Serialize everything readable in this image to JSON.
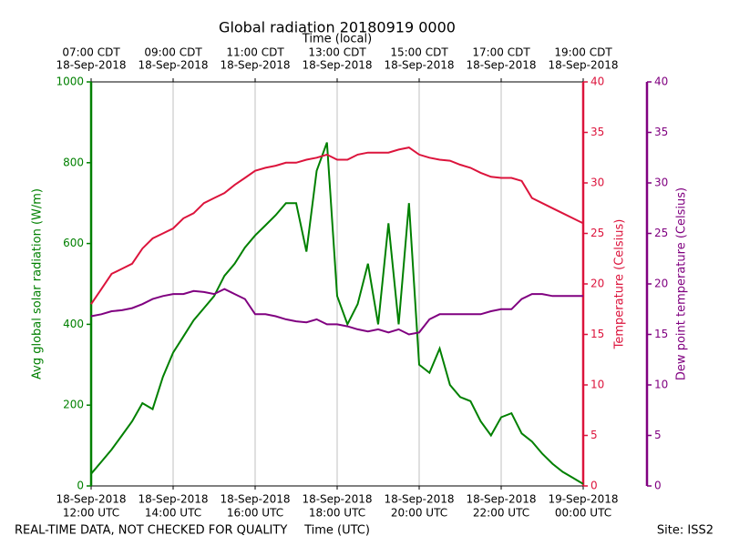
{
  "chart_data": {
    "type": "line",
    "title": "Global radiation 20180919 0000",
    "x2label": "Time (local)",
    "xlabel": "Time (UTC)",
    "footnote": "REAL-TIME DATA, NOT CHECKED FOR QUALITY",
    "site": "Site: ISS2",
    "grid": "x",
    "x": [
      "2018-09-18T12:00Z",
      "2018-09-18T12:15Z",
      "2018-09-18T12:30Z",
      "2018-09-18T12:45Z",
      "2018-09-18T13:00Z",
      "2018-09-18T13:15Z",
      "2018-09-18T13:30Z",
      "2018-09-18T13:45Z",
      "2018-09-18T14:00Z",
      "2018-09-18T14:15Z",
      "2018-09-18T14:30Z",
      "2018-09-18T14:45Z",
      "2018-09-18T15:00Z",
      "2018-09-18T15:15Z",
      "2018-09-18T15:30Z",
      "2018-09-18T15:45Z",
      "2018-09-18T16:00Z",
      "2018-09-18T16:15Z",
      "2018-09-18T16:30Z",
      "2018-09-18T16:45Z",
      "2018-09-18T17:00Z",
      "2018-09-18T17:15Z",
      "2018-09-18T17:30Z",
      "2018-09-18T17:45Z",
      "2018-09-18T18:00Z",
      "2018-09-18T18:15Z",
      "2018-09-18T18:30Z",
      "2018-09-18T18:45Z",
      "2018-09-18T19:00Z",
      "2018-09-18T19:15Z",
      "2018-09-18T19:30Z",
      "2018-09-18T19:45Z",
      "2018-09-18T20:00Z",
      "2018-09-18T20:15Z",
      "2018-09-18T20:30Z",
      "2018-09-18T20:45Z",
      "2018-09-18T21:00Z",
      "2018-09-18T21:15Z",
      "2018-09-18T21:30Z",
      "2018-09-18T21:45Z",
      "2018-09-18T22:00Z",
      "2018-09-18T22:15Z",
      "2018-09-18T22:30Z",
      "2018-09-18T22:45Z",
      "2018-09-18T23:00Z",
      "2018-09-18T23:15Z",
      "2018-09-18T23:30Z",
      "2018-09-18T23:45Z",
      "2018-09-19T00:00Z"
    ],
    "xlim": [
      "2018-09-18T12:00Z",
      "2018-09-19T00:00Z"
    ],
    "xticks": [
      {
        "value": "2018-09-18T12:00Z",
        "label": [
          "18-Sep-2018",
          "12:00 UTC"
        ]
      },
      {
        "value": "2018-09-18T14:00Z",
        "label": [
          "18-Sep-2018",
          "14:00 UTC"
        ]
      },
      {
        "value": "2018-09-18T16:00Z",
        "label": [
          "18-Sep-2018",
          "16:00 UTC"
        ]
      },
      {
        "value": "2018-09-18T18:00Z",
        "label": [
          "18-Sep-2018",
          "18:00 UTC"
        ]
      },
      {
        "value": "2018-09-18T20:00Z",
        "label": [
          "18-Sep-2018",
          "20:00 UTC"
        ]
      },
      {
        "value": "2018-09-18T22:00Z",
        "label": [
          "18-Sep-2018",
          "22:00 UTC"
        ]
      },
      {
        "value": "2018-09-19T00:00Z",
        "label": [
          "19-Sep-2018",
          "00:00 UTC"
        ]
      }
    ],
    "x2ticks": [
      {
        "value": "2018-09-18T12:00Z",
        "label": [
          "07:00 CDT",
          "18-Sep-2018"
        ]
      },
      {
        "value": "2018-09-18T14:00Z",
        "label": [
          "09:00 CDT",
          "18-Sep-2018"
        ]
      },
      {
        "value": "2018-09-18T16:00Z",
        "label": [
          "11:00 CDT",
          "18-Sep-2018"
        ]
      },
      {
        "value": "2018-09-18T18:00Z",
        "label": [
          "13:00 CDT",
          "18-Sep-2018"
        ]
      },
      {
        "value": "2018-09-18T20:00Z",
        "label": [
          "15:00 CDT",
          "18-Sep-2018"
        ]
      },
      {
        "value": "2018-09-18T22:00Z",
        "label": [
          "17:00 CDT",
          "18-Sep-2018"
        ]
      },
      {
        "value": "2018-09-19T00:00Z",
        "label": [
          "19:00 CDT",
          "18-Sep-2018"
        ]
      }
    ],
    "ylim": [
      0,
      1000
    ],
    "yticks": [
      0,
      200,
      400,
      600,
      800,
      1000
    ],
    "y2lim": [
      0,
      40
    ],
    "y2ticks": [
      0,
      5,
      10,
      15,
      20,
      25,
      30,
      35,
      40
    ],
    "y3lim": [
      0,
      40
    ],
    "y3ticks": [
      0,
      5,
      10,
      15,
      20,
      25,
      30,
      35,
      40
    ],
    "series": [
      {
        "name": "Avg global solar radiation (W/m)",
        "color": "#008000",
        "axis": "y",
        "values": [
          30,
          60,
          90,
          125,
          160,
          205,
          190,
          270,
          330,
          370,
          410,
          440,
          470,
          520,
          550,
          590,
          620,
          645,
          670,
          700,
          700,
          580,
          780,
          850,
          470,
          400,
          450,
          550,
          400,
          650,
          400,
          700,
          300,
          280,
          340,
          250,
          220,
          210,
          160,
          125,
          170,
          180,
          130,
          110,
          80,
          55,
          35,
          20,
          5
        ]
      },
      {
        "name": "Temperature (Celsius)",
        "color": "#dc143c",
        "axis": "y2",
        "values": [
          18,
          19.5,
          21,
          21.5,
          22,
          23.5,
          24.5,
          25,
          25.5,
          26.5,
          27,
          28,
          28.5,
          29,
          29.8,
          30.5,
          31.2,
          31.5,
          31.7,
          32,
          32,
          32.3,
          32.5,
          32.8,
          32.3,
          32.3,
          32.8,
          33,
          33,
          33,
          33.3,
          33.5,
          32.8,
          32.5,
          32.3,
          32.2,
          31.8,
          31.5,
          31,
          30.6,
          30.5,
          30.5,
          30.2,
          28.5,
          28,
          27.5,
          27,
          26.5,
          26
        ]
      },
      {
        "name": "Dew point temperature (Celsius)",
        "color": "#800080",
        "axis": "y3",
        "values": [
          16.8,
          17,
          17.3,
          17.4,
          17.6,
          18,
          18.5,
          18.8,
          19,
          19,
          19.3,
          19.2,
          19,
          19.5,
          19,
          18.5,
          17,
          17,
          16.8,
          16.5,
          16.3,
          16.2,
          16.5,
          16,
          16,
          15.8,
          15.5,
          15.3,
          15.5,
          15.2,
          15.5,
          15,
          15.2,
          16.5,
          17,
          17,
          17,
          17,
          17,
          17.3,
          17.5,
          17.5,
          18.5,
          19,
          19,
          18.8,
          18.8,
          18.8,
          18.8
        ]
      }
    ]
  }
}
